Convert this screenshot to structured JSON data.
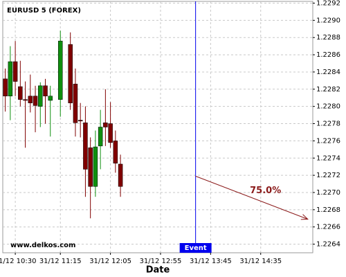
{
  "chart_data": {
    "type": "candlestick",
    "title": "EURUSD 5 (FOREX)",
    "x_label": "Date",
    "watermark": "www.delkos.com",
    "grid": true,
    "up_color": "#0f8f0f",
    "down_color": "#800000",
    "x": [
      -10,
      -5,
      0,
      5,
      10,
      15,
      20,
      25,
      30,
      35,
      45,
      55,
      60,
      65,
      70,
      75,
      80,
      85,
      90,
      95,
      100,
      105
    ],
    "open": [
      1.22832,
      1.22812,
      1.22852,
      1.22823,
      1.22808,
      1.22812,
      1.22812,
      1.228,
      1.22824,
      1.22807,
      1.22808,
      1.22872,
      1.22826,
      1.22784,
      1.22781,
      1.22752,
      1.22707,
      1.22754,
      1.22781,
      1.2278,
      1.2276,
      1.22733
    ],
    "high": [
      1.22844,
      1.2287,
      1.22876,
      1.22853,
      1.22829,
      1.22837,
      1.22824,
      1.22828,
      1.22832,
      1.22824,
      1.22888,
      1.22886,
      1.22844,
      1.22804,
      1.228,
      1.22764,
      1.22772,
      1.22796,
      1.2282,
      1.22805,
      1.22772,
      1.22744
    ],
    "low": [
      1.22794,
      1.22784,
      1.22812,
      1.228,
      1.22752,
      1.22793,
      1.2277,
      1.22776,
      1.2278,
      1.22765,
      1.22788,
      1.22796,
      1.22765,
      1.22764,
      1.22695,
      1.2267,
      1.22695,
      1.22727,
      1.22754,
      1.22752,
      1.22723,
      1.22695
    ],
    "close": [
      1.22812,
      1.22852,
      1.22829,
      1.22808,
      1.22807,
      1.22804,
      1.22801,
      1.22824,
      1.22812,
      1.22812,
      1.22876,
      1.22804,
      1.22781,
      1.22783,
      1.22727,
      1.22707,
      1.22753,
      1.22776,
      1.22776,
      1.22758,
      1.22734,
      1.22707
    ],
    "xlim": [
      -12.5,
      297
    ],
    "xticks": [
      {
        "value": 0,
        "label": "31/12 10:30"
      },
      {
        "value": 45,
        "label": "31/12 11:15"
      },
      {
        "value": 95,
        "label": "31/12 12:05"
      },
      {
        "value": 145,
        "label": "31/12 12:55"
      },
      {
        "value": 195,
        "label": "31/12 13:45"
      },
      {
        "value": 245,
        "label": "31/12 14:35"
      }
    ],
    "ylim": [
      1.2263,
      1.22922
    ],
    "yticks": [
      1.2264,
      1.2266,
      1.2268,
      {
        "value": 1.227,
        "label": "1.2270"
      },
      1.2272,
      1.2274,
      1.2276,
      1.2278,
      {
        "value": 1.228,
        "label": "1.2280"
      },
      1.2282,
      1.2284,
      1.2286,
      1.2288,
      {
        "value": 1.229,
        "label": "1.2290"
      },
      1.2292
    ],
    "event": {
      "x": 180,
      "label": "Event",
      "color": "#0000ee"
    },
    "forecast": {
      "x": [
        180,
        292
      ],
      "y": [
        1.22719,
        1.22669
      ],
      "label": "75.0%",
      "color": "#8b1a1a"
    }
  }
}
